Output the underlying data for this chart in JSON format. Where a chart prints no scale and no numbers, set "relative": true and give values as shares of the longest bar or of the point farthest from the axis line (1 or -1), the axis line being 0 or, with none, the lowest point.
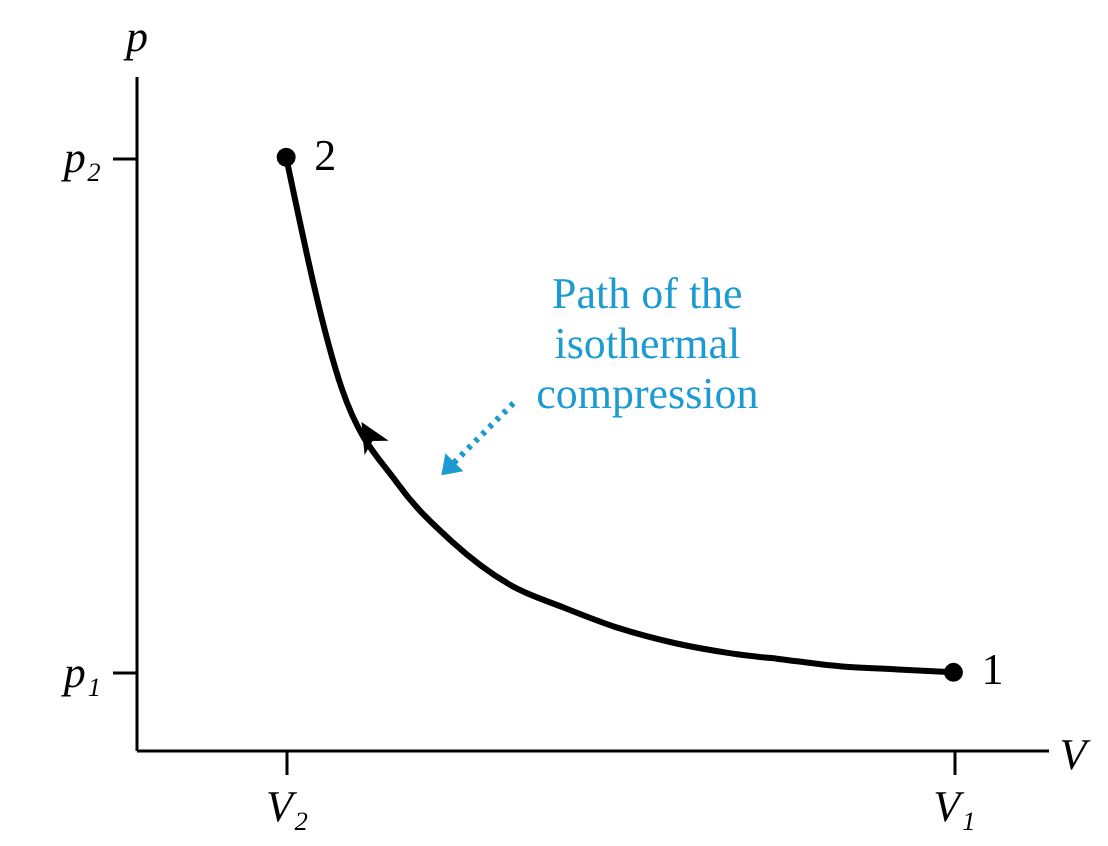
{
  "chart_data": {
    "type": "line",
    "xlabel": "V",
    "ylabel": "p",
    "relative": true,
    "categories": [
      null,
      null,
      "V₂",
      null,
      null,
      null,
      null,
      null,
      null,
      null,
      null,
      null,
      null,
      null,
      "V₁",
      null
    ],
    "series": [
      {
        "color": "#000000",
        "values": [
          null,
          null,
          1.0,
          0.61,
          0.45,
          0.35,
          0.28,
          0.24,
          0.205,
          0.18,
          0.163,
          0.152,
          0.141,
          0.136,
          0.131,
          null
        ]
      },
      {
        "type": "scatter",
        "color": "#000000",
        "x": [
          "V₂",
          "V₁"
        ],
        "values": [
          1.0,
          0.131
        ]
      }
    ],
    "annotations": [
      {
        "text": "2",
        "x": "V₂",
        "y": 1.0
      },
      {
        "text": "1",
        "x": "V₁",
        "y": 0.131
      },
      "p₂",
      "p₁",
      "Path of the isothermal compression"
    ]
  }
}
